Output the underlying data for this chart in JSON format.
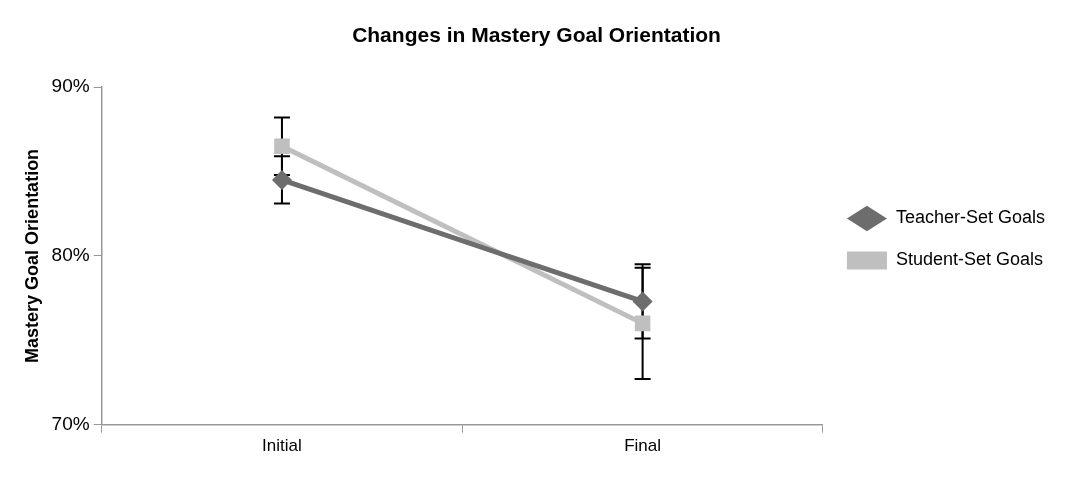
{
  "chart_data": {
    "type": "line",
    "title": "Changes in Mastery Goal Orientation",
    "ylabel": "Mastery Goal Orientation",
    "categories": [
      "Initial",
      "Final"
    ],
    "series": [
      {
        "name": "Teacher-Set Goals",
        "color": "#6d6d6d",
        "marker": "diamond",
        "values": [
          84.5,
          77.3
        ],
        "errors": [
          1.4,
          2.2
        ]
      },
      {
        "name": "Student-Set Goals",
        "color": "#bfbfbf",
        "marker": "square",
        "values": [
          86.5,
          76.0
        ],
        "errors": [
          1.7,
          3.3
        ]
      }
    ],
    "ylim": [
      70,
      90
    ],
    "yticks": [
      {
        "value": 70,
        "label": "70%"
      },
      {
        "value": 80,
        "label": "80%"
      },
      {
        "value": 90,
        "label": "90%"
      }
    ],
    "grid": false,
    "legend": "right",
    "line_style": "solid"
  }
}
